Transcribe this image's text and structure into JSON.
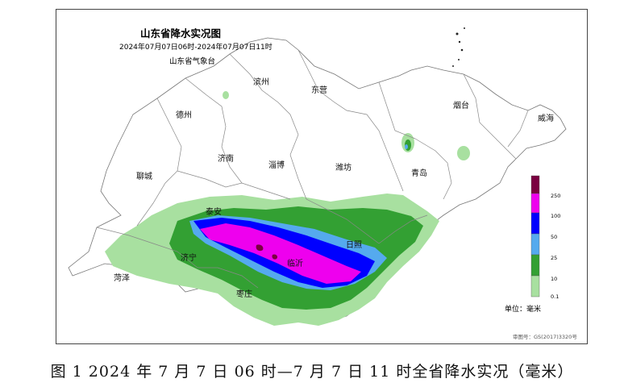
{
  "map": {
    "title": "山东省降水实况图",
    "subtitle": "2024年07月07日06时-2024年07月07日11时",
    "issuer": "山东省气象台",
    "review_number": "审图号：GS(2017)3320号",
    "cities": {
      "binzhou": "滨州",
      "dongying": "东营",
      "dezhou": "德州",
      "yantai": "烟台",
      "weihai": "威海",
      "jinan": "济南",
      "zibo": "淄博",
      "weifang": "潍坊",
      "qingdao": "青岛",
      "liaocheng": "聊城",
      "taian": "泰安",
      "rizhao": "日照",
      "jining": "济宁",
      "linyi": "临沂",
      "heze": "菏泽",
      "zaozhuang": "枣庄"
    }
  },
  "legend": {
    "ticks": [
      "250",
      "100",
      "50",
      "25",
      "10",
      "0.1"
    ],
    "unit": "单位：毫米",
    "colors": [
      "#7a0040",
      "#ee00ee",
      "#0000ff",
      "#55aaee",
      "#33a033",
      "#a8e0a0"
    ]
  },
  "caption": "图 1 2024 年 7 月 7 日 06 时—7 月 7 日 11 时全省降水实况（毫米）"
}
